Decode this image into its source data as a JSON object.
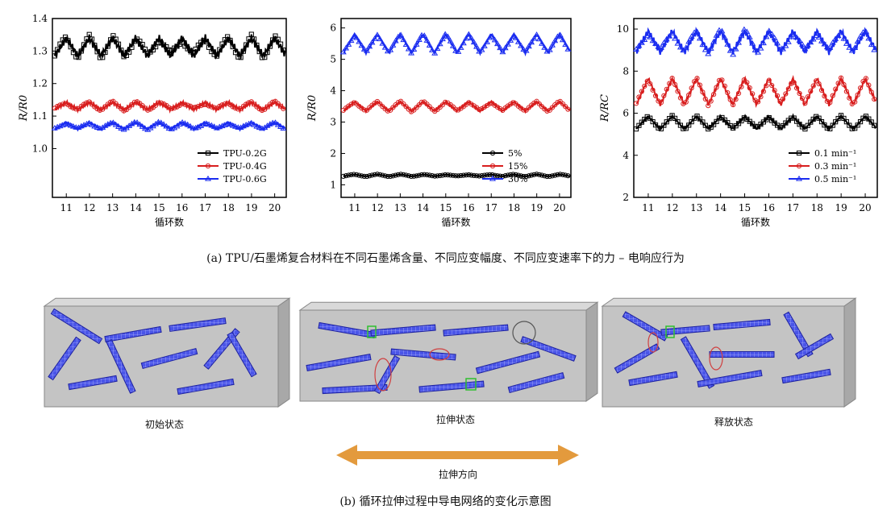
{
  "chart_data": [
    {
      "type": "line",
      "xlabel": "循环数",
      "ylabel": "R/R0",
      "xlim": [
        10.4,
        20.5
      ],
      "ylim": [
        0.85,
        1.4
      ],
      "xticks": [
        "11",
        "12",
        "13",
        "14",
        "15",
        "16",
        "17",
        "18",
        "19",
        "20"
      ],
      "yticks": [
        "1.0",
        "1.1",
        "1.2",
        "1.3",
        "1.4"
      ],
      "legend_position": "bottom-right",
      "series": [
        {
          "name": "TPU-0.2G",
          "color": "#000000",
          "marker": "square",
          "base": 1.285,
          "amp": 0.055,
          "jitter": 0.012
        },
        {
          "name": "TPU-0.4G",
          "color": "#d81e1e",
          "marker": "circle",
          "base": 1.12,
          "amp": 0.022,
          "jitter": 0.005
        },
        {
          "name": "TPU-0.6G",
          "color": "#1a2cf0",
          "marker": "triangle",
          "base": 1.06,
          "amp": 0.02,
          "jitter": 0.003
        }
      ]
    },
    {
      "type": "line",
      "xlabel": "循环数",
      "ylabel": "R/R0",
      "xlim": [
        10.4,
        20.5
      ],
      "ylim": [
        0.6,
        6.3
      ],
      "xticks": [
        "11",
        "12",
        "13",
        "14",
        "15",
        "16",
        "17",
        "18",
        "19",
        "20"
      ],
      "yticks": [
        "1",
        "2",
        "3",
        "4",
        "5",
        "6"
      ],
      "legend_position": "bottom-right",
      "series": [
        {
          "name": "5%",
          "color": "#000000",
          "marker": "circle",
          "base": 1.27,
          "amp": 0.06,
          "jitter": 0.01
        },
        {
          "name": "15%",
          "color": "#d81e1e",
          "marker": "circle",
          "base": 3.35,
          "amp": 0.3,
          "jitter": 0.03
        },
        {
          "name": "30%",
          "color": "#1a2cf0",
          "marker": "triangle",
          "base": 5.2,
          "amp": 0.6,
          "jitter": 0.03
        }
      ]
    },
    {
      "type": "line",
      "xlabel": "循环数",
      "ylabel": "R/RC",
      "xlim": [
        10.4,
        20.5
      ],
      "ylim": [
        2,
        10.5
      ],
      "xticks": [
        "11",
        "12",
        "13",
        "14",
        "15",
        "16",
        "17",
        "18",
        "19",
        "20"
      ],
      "yticks": [
        "2",
        "4",
        "6",
        "8",
        "10"
      ],
      "legend_position": "bottom-right",
      "series": [
        {
          "name": "0.1 min⁻¹",
          "color": "#000000",
          "marker": "square",
          "base": 5.25,
          "amp": 0.6,
          "jitter": 0.05
        },
        {
          "name": "0.3 min⁻¹",
          "color": "#d81e1e",
          "marker": "circle",
          "base": 6.4,
          "amp": 1.25,
          "jitter": 0.08
        },
        {
          "name": "0.5 min⁻¹",
          "color": "#1a2cf0",
          "marker": "triangle",
          "base": 8.9,
          "amp": 1.0,
          "jitter": 0.15
        }
      ]
    }
  ],
  "caption_a": "(a) TPU/石墨烯复合材料在不同石墨烯含量、不同应变幅度、不同应变速率下的力 – 电响应行为",
  "caption_b": "(b) 循环拉伸过程中导电网络的变化示意图",
  "states": {
    "initial": "初始状态",
    "stretched": "拉伸状态",
    "released": "释放状态",
    "direction": "拉伸方向"
  },
  "colors": {
    "block_face": "#c4c4c4",
    "block_top": "#d9d9d9",
    "block_side": "#a8a8a8",
    "graphene": "#3c42c8",
    "arrow": "#e39a3d"
  }
}
